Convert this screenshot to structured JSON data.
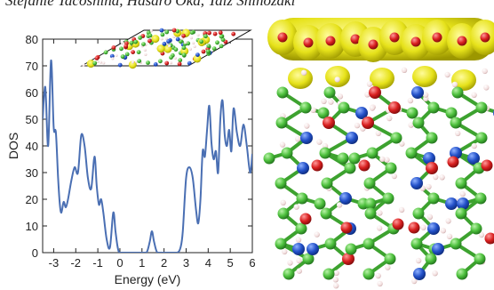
{
  "caption": "Stefanie Tacoshina, Hasaro Oka, Taiz Shinozaki",
  "colors": {
    "dos_line": "#4a6fb3",
    "isosurface": "#e6e21a",
    "isosurface_dark": "#b8b500",
    "carbon": "#4cbf3c",
    "nitrogen": "#2250c8",
    "oxygen": "#d81f1f",
    "hydrogen": "#f2dede",
    "axis": "#222222"
  },
  "chart_data": {
    "type": "line",
    "title": "",
    "xlabel": "Energy (eV)",
    "ylabel": "DOS",
    "xlim": [
      -3.5,
      6
    ],
    "ylim": [
      0,
      80
    ],
    "xticks": [
      -3,
      -2,
      -1,
      0,
      1,
      2,
      3,
      4,
      5,
      6
    ],
    "xtick_labels": [
      "-3",
      "-2",
      "-1",
      "0",
      "1",
      "2",
      "3",
      "4",
      "5",
      "6"
    ],
    "yticks": [
      0,
      10,
      20,
      30,
      40,
      50,
      60,
      70,
      80
    ],
    "ytick_labels": [
      "0",
      "10",
      "20",
      "30",
      "40",
      "50",
      "60",
      "70",
      "80"
    ],
    "grid": false,
    "series": [
      {
        "x": [
          -3.5,
          -3.38,
          -3.25,
          -3.12,
          -3.0,
          -2.9,
          -2.8,
          -2.72,
          -2.65,
          -2.55,
          -2.45,
          -2.35,
          -2.2,
          -2.05,
          -1.9,
          -1.75,
          -1.6,
          -1.45,
          -1.3,
          -1.15,
          -1.05,
          -0.95,
          -0.85,
          -0.75,
          -0.6,
          -0.45,
          -0.3,
          -0.2,
          -0.1,
          0.0,
          0.3,
          0.6,
          0.9,
          1.2,
          1.35,
          1.45,
          1.55,
          1.7,
          2.0,
          2.3,
          2.6,
          2.75,
          2.85,
          3.0,
          3.15,
          3.3,
          3.45,
          3.55,
          3.65,
          3.75,
          3.85,
          3.95,
          4.05,
          4.15,
          4.25,
          4.35,
          4.45,
          4.55,
          4.65,
          4.75,
          4.85,
          4.95,
          5.05,
          5.15,
          5.3,
          5.45,
          5.6,
          5.75,
          5.9,
          6.0
        ],
        "y": [
          50,
          62,
          40,
          72,
          47,
          45,
          28,
          18,
          15,
          19,
          17,
          20,
          27,
          32,
          30,
          44,
          40,
          28,
          24,
          36,
          25,
          18,
          20,
          15,
          5,
          2,
          15,
          8,
          2,
          0,
          0,
          0,
          0,
          0,
          4,
          8,
          4,
          0,
          0,
          0,
          0,
          2,
          8,
          28,
          32,
          28,
          16,
          11,
          20,
          38,
          36,
          46,
          55,
          41,
          35,
          38,
          30,
          50,
          57,
          44,
          40,
          46,
          38,
          54,
          45,
          40,
          48,
          40,
          30,
          37
        ]
      }
    ]
  }
}
